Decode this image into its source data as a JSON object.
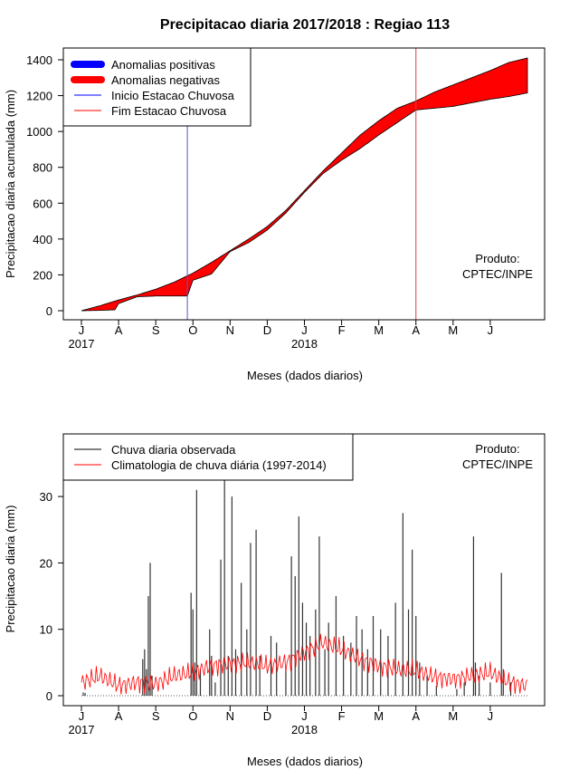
{
  "chart_data": [
    {
      "type": "area",
      "title": "Precipitacao diaria 2017/2018 : Regiao 113",
      "xlabel": "Meses (dados diarios)",
      "ylabel": "Precipitacao diaria acumulada (mm)",
      "ylim": [
        0,
        1400
      ],
      "yticks": [
        "0",
        "200",
        "400",
        "600",
        "800",
        "1000",
        "1200",
        "1400"
      ],
      "xticks": [
        "J",
        "A",
        "S",
        "O",
        "N",
        "D",
        "J",
        "F",
        "M",
        "A",
        "M",
        "J"
      ],
      "year_labels": [
        "2017",
        "2018"
      ],
      "legend": [
        {
          "label": "Anomalias positivas",
          "color": "#0000ff"
        },
        {
          "label": "Anomalias negativas",
          "color": "#ff0000"
        },
        {
          "label": "Inicio Estacao Chuvosa",
          "color": "#0000ff"
        },
        {
          "label": "Fim Estacao Chuvosa",
          "color": "#ff0000"
        }
      ],
      "annotation": [
        "Produto:",
        "CPTEC/INPE"
      ],
      "onset_month_index": 2.85,
      "end_month_index": 9.0,
      "series": [
        {
          "name": "Climatologia acumulada",
          "x_month": [
            0,
            0.5,
            1,
            1.5,
            2,
            2.5,
            3,
            3.5,
            4,
            4.5,
            5,
            5.5,
            6,
            6.5,
            7,
            7.5,
            8,
            8.5,
            9,
            9.5,
            10,
            10.5,
            11,
            11.5,
            12
          ],
          "values": [
            0,
            28,
            60,
            88,
            120,
            160,
            210,
            270,
            335,
            400,
            470,
            560,
            670,
            780,
            880,
            980,
            1060,
            1130,
            1170,
            1220,
            1260,
            1300,
            1340,
            1385,
            1410
          ]
        },
        {
          "name": "Observado acumulado",
          "x_month": [
            0,
            0.5,
            0.9,
            1.0,
            1.5,
            2,
            2.5,
            2.85,
            3,
            3.5,
            3.8,
            4,
            4.5,
            5,
            5.5,
            6,
            6.5,
            7,
            7.5,
            8,
            8.5,
            9,
            9.5,
            10,
            10.5,
            11,
            11.5,
            12
          ],
          "values": [
            0,
            2,
            5,
            40,
            78,
            82,
            82,
            82,
            170,
            205,
            280,
            330,
            380,
            450,
            545,
            660,
            765,
            840,
            905,
            980,
            1050,
            1120,
            1130,
            1140,
            1160,
            1180,
            1195,
            1215
          ]
        }
      ]
    },
    {
      "type": "bar",
      "xlabel": "Meses (dados diarios)",
      "ylabel": "Precipitacao diaria (mm)",
      "ylim": [
        0,
        35
      ],
      "yticks": [
        "0",
        "10",
        "20",
        "30"
      ],
      "xticks": [
        "J",
        "A",
        "S",
        "O",
        "N",
        "D",
        "J",
        "F",
        "M",
        "A",
        "M",
        "J"
      ],
      "year_labels": [
        "2017",
        "2018"
      ],
      "legend": [
        {
          "label": "Chuva diaria observada",
          "color": "#000000"
        },
        {
          "label": "Climatologia de chuva diária (1997-2014)",
          "color": "#ff0000"
        }
      ],
      "annotation": [
        "Produto:",
        "CPTEC/INPE"
      ],
      "observed_events": [
        {
          "x_month": 0.05,
          "value": 0.5
        },
        {
          "x_month": 0.1,
          "value": 0.4
        },
        {
          "x_month": 1.65,
          "value": 5.5
        },
        {
          "x_month": 1.7,
          "value": 7.0
        },
        {
          "x_month": 1.75,
          "value": 4.0
        },
        {
          "x_month": 1.8,
          "value": 15.0
        },
        {
          "x_month": 1.85,
          "value": 20.0
        },
        {
          "x_month": 1.9,
          "value": 3.0
        },
        {
          "x_month": 2.95,
          "value": 15.5
        },
        {
          "x_month": 3.0,
          "value": 13.0
        },
        {
          "x_month": 3.05,
          "value": 5.0
        },
        {
          "x_month": 3.1,
          "value": 31.0
        },
        {
          "x_month": 3.2,
          "value": 4.0
        },
        {
          "x_month": 3.45,
          "value": 10.0
        },
        {
          "x_month": 3.5,
          "value": 6.0
        },
        {
          "x_month": 3.6,
          "value": 2.0
        },
        {
          "x_month": 3.75,
          "value": 20.5
        },
        {
          "x_month": 3.85,
          "value": 33.0
        },
        {
          "x_month": 3.95,
          "value": 6.0
        },
        {
          "x_month": 4.05,
          "value": 30.0
        },
        {
          "x_month": 4.15,
          "value": 7.0
        },
        {
          "x_month": 4.3,
          "value": 17.0
        },
        {
          "x_month": 4.45,
          "value": 10.0
        },
        {
          "x_month": 4.55,
          "value": 23.0
        },
        {
          "x_month": 4.7,
          "value": 25.0
        },
        {
          "x_month": 4.8,
          "value": 6.0
        },
        {
          "x_month": 5.1,
          "value": 9.0
        },
        {
          "x_month": 5.25,
          "value": 8.0
        },
        {
          "x_month": 5.5,
          "value": 4.0
        },
        {
          "x_month": 5.65,
          "value": 21.0
        },
        {
          "x_month": 5.75,
          "value": 18.0
        },
        {
          "x_month": 5.85,
          "value": 27.0
        },
        {
          "x_month": 5.95,
          "value": 14.0
        },
        {
          "x_month": 6.05,
          "value": 11.0
        },
        {
          "x_month": 6.15,
          "value": 9.0
        },
        {
          "x_month": 6.3,
          "value": 13.0
        },
        {
          "x_month": 6.4,
          "value": 24.0
        },
        {
          "x_month": 6.55,
          "value": 7.0
        },
        {
          "x_month": 6.65,
          "value": 11.0
        },
        {
          "x_month": 6.85,
          "value": 15.0
        },
        {
          "x_month": 7.05,
          "value": 9.0
        },
        {
          "x_month": 7.25,
          "value": 8.0
        },
        {
          "x_month": 7.4,
          "value": 12.0
        },
        {
          "x_month": 7.55,
          "value": 10.0
        },
        {
          "x_month": 7.7,
          "value": 7.0
        },
        {
          "x_month": 7.85,
          "value": 12.0
        },
        {
          "x_month": 8.05,
          "value": 10.0
        },
        {
          "x_month": 8.25,
          "value": 9.0
        },
        {
          "x_month": 8.45,
          "value": 14.0
        },
        {
          "x_month": 8.65,
          "value": 27.5
        },
        {
          "x_month": 8.8,
          "value": 13.0
        },
        {
          "x_month": 8.9,
          "value": 22.0
        },
        {
          "x_month": 9.0,
          "value": 12.0
        },
        {
          "x_month": 9.1,
          "value": 5.0
        },
        {
          "x_month": 9.3,
          "value": 3.0
        },
        {
          "x_month": 9.55,
          "value": 1.5
        },
        {
          "x_month": 10.1,
          "value": 1.0
        },
        {
          "x_month": 10.3,
          "value": 2.0
        },
        {
          "x_month": 10.55,
          "value": 24.0
        },
        {
          "x_month": 10.6,
          "value": 5.0
        },
        {
          "x_month": 10.7,
          "value": 3.0
        },
        {
          "x_month": 11.0,
          "value": 2.0
        },
        {
          "x_month": 11.3,
          "value": 18.5
        },
        {
          "x_month": 11.35,
          "value": 4.0
        },
        {
          "x_month": 11.55,
          "value": 2.0
        }
      ],
      "climatology_monthly": {
        "x_month": [
          0,
          0.5,
          1,
          1.5,
          2,
          2.5,
          3,
          3.5,
          4,
          4.5,
          5,
          5.5,
          6,
          6.5,
          7,
          7.5,
          8,
          8.5,
          9,
          9.5,
          10,
          10.5,
          11,
          11.5,
          12
        ],
        "values": [
          2.0,
          3.0,
          1.5,
          2.0,
          1.8,
          3.0,
          3.5,
          4.5,
          4.8,
          5.0,
          4.5,
          5.0,
          6.5,
          8.0,
          7.0,
          5.5,
          4.5,
          4.0,
          3.8,
          2.8,
          2.5,
          3.0,
          3.5,
          2.0,
          1.5
        ]
      }
    }
  ]
}
